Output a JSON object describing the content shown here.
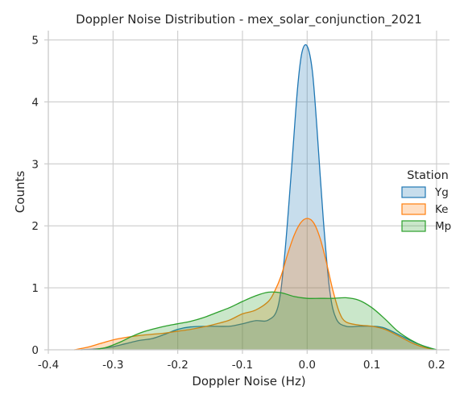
{
  "chart_data": {
    "type": "area",
    "title": "Doppler Noise Distribution - mex_solar_conjunction_2021",
    "xlabel": "Doppler Noise (Hz)",
    "ylabel": "Counts",
    "xlim": [
      -0.4,
      0.22
    ],
    "ylim": [
      0,
      5.15
    ],
    "xticks": [
      -0.4,
      -0.3,
      -0.2,
      -0.1,
      0.0,
      0.1,
      0.2
    ],
    "xtick_labels": [
      "-0.4",
      "-0.3",
      "-0.2",
      "-0.1",
      "0.0",
      "0.1",
      "0.2"
    ],
    "yticks": [
      0,
      1,
      2,
      3,
      4,
      5
    ],
    "ytick_labels": [
      "0",
      "1",
      "2",
      "3",
      "4",
      "5"
    ],
    "grid": true,
    "legend": {
      "title": "Station",
      "position": "right"
    },
    "series": [
      {
        "name": "Yg",
        "color": "#1f77b4",
        "x": [
          -0.35,
          -0.32,
          -0.3,
          -0.28,
          -0.26,
          -0.24,
          -0.22,
          -0.2,
          -0.18,
          -0.15,
          -0.12,
          -0.1,
          -0.08,
          -0.06,
          -0.045,
          -0.035,
          -0.025,
          -0.015,
          -0.008,
          0.0,
          0.008,
          0.015,
          0.025,
          0.035,
          0.045,
          0.06,
          0.08,
          0.1,
          0.12,
          0.15,
          0.17,
          0.19,
          0.2
        ],
        "y": [
          0.0,
          0.02,
          0.05,
          0.1,
          0.15,
          0.18,
          0.25,
          0.33,
          0.37,
          0.38,
          0.38,
          0.42,
          0.47,
          0.48,
          0.7,
          1.5,
          2.8,
          4.2,
          4.8,
          4.9,
          4.5,
          3.6,
          2.1,
          0.95,
          0.5,
          0.38,
          0.38,
          0.38,
          0.35,
          0.2,
          0.1,
          0.03,
          0.0
        ]
      },
      {
        "name": "Ke",
        "color": "#ff7f0e",
        "x": [
          -0.36,
          -0.34,
          -0.32,
          -0.3,
          -0.28,
          -0.26,
          -0.24,
          -0.22,
          -0.2,
          -0.18,
          -0.16,
          -0.14,
          -0.12,
          -0.1,
          -0.08,
          -0.06,
          -0.05,
          -0.04,
          -0.03,
          -0.02,
          -0.01,
          0.0,
          0.01,
          0.02,
          0.03,
          0.04,
          0.05,
          0.06,
          0.08,
          0.1,
          0.12,
          0.14,
          0.16,
          0.18,
          0.2
        ],
        "y": [
          0.0,
          0.04,
          0.1,
          0.16,
          0.2,
          0.23,
          0.25,
          0.27,
          0.3,
          0.33,
          0.37,
          0.42,
          0.48,
          0.58,
          0.64,
          0.78,
          0.95,
          1.2,
          1.55,
          1.85,
          2.05,
          2.12,
          2.05,
          1.8,
          1.4,
          0.95,
          0.6,
          0.45,
          0.4,
          0.38,
          0.33,
          0.23,
          0.12,
          0.04,
          0.0
        ]
      },
      {
        "name": "Mp",
        "color": "#2ca02c",
        "x": [
          -0.33,
          -0.31,
          -0.29,
          -0.27,
          -0.25,
          -0.22,
          -0.2,
          -0.18,
          -0.16,
          -0.14,
          -0.12,
          -0.1,
          -0.08,
          -0.06,
          -0.04,
          -0.02,
          0.0,
          0.02,
          0.04,
          0.06,
          0.08,
          0.1,
          0.12,
          0.14,
          0.16,
          0.18,
          0.2
        ],
        "y": [
          0.0,
          0.04,
          0.12,
          0.22,
          0.3,
          0.38,
          0.42,
          0.46,
          0.52,
          0.6,
          0.68,
          0.78,
          0.87,
          0.93,
          0.92,
          0.86,
          0.83,
          0.83,
          0.83,
          0.84,
          0.8,
          0.68,
          0.5,
          0.3,
          0.16,
          0.06,
          0.0
        ]
      }
    ]
  }
}
